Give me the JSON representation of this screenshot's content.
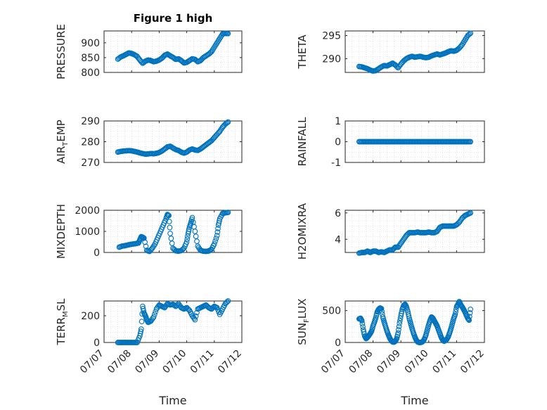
{
  "figure": {
    "title": "Figure 1 high"
  },
  "colors": {
    "marker": "#0072BD",
    "axis": "#262626",
    "grid": "#d0d0d0"
  },
  "x_tick_labels": [
    "07/07",
    "07/08",
    "07/09",
    "07/10",
    "07/11",
    "07/12"
  ],
  "chart_data": [
    {
      "type": "scatter",
      "ylabel": "PRESSURE",
      "ylabel_sub": "",
      "ylabel_suffix": "",
      "ylim": [
        800,
        940
      ],
      "yticks": [
        800,
        850,
        900
      ],
      "xlabel": "",
      "title": "Figure 1 high",
      "x": [
        7.5,
        7.6,
        7.7,
        7.8,
        7.9,
        8.0,
        8.1,
        8.2,
        8.3,
        8.4,
        8.5,
        8.6,
        8.7,
        8.8,
        8.9,
        9.0,
        9.1,
        9.2,
        9.3,
        9.4,
        9.5,
        9.6,
        9.7,
        9.8,
        9.9,
        10.0,
        10.1,
        10.2,
        10.3,
        10.4,
        10.5,
        10.6,
        10.7,
        10.8,
        10.9,
        11.0,
        11.1,
        11.2,
        11.3,
        11.4,
        11.5
      ],
      "y": [
        845,
        852,
        856,
        861,
        866,
        864,
        860,
        854,
        842,
        831,
        838,
        842,
        840,
        836,
        838,
        842,
        848,
        858,
        862,
        856,
        851,
        844,
        846,
        840,
        832,
        834,
        840,
        846,
        844,
        836,
        840,
        850,
        856,
        862,
        870,
        885,
        900,
        915,
        930,
        932,
        931
      ]
    },
    {
      "type": "scatter",
      "ylabel": "THETA",
      "ylabel_sub": "",
      "ylabel_suffix": "",
      "ylim": [
        287,
        296
      ],
      "yticks": [
        290,
        295
      ],
      "xlabel": "",
      "title": "",
      "x": [
        7.5,
        7.6,
        7.7,
        7.8,
        7.9,
        8.0,
        8.1,
        8.2,
        8.3,
        8.4,
        8.5,
        8.6,
        8.7,
        8.8,
        8.9,
        9.0,
        9.1,
        9.2,
        9.3,
        9.4,
        9.5,
        9.6,
        9.7,
        9.8,
        9.9,
        10.0,
        10.1,
        10.2,
        10.3,
        10.4,
        10.5,
        10.6,
        10.7,
        10.8,
        10.9,
        11.0,
        11.1,
        11.2,
        11.3,
        11.4,
        11.5
      ],
      "y": [
        288.3,
        288.2,
        288.0,
        287.8,
        287.5,
        287.3,
        287.4,
        287.8,
        288.2,
        288.5,
        288.4,
        288.7,
        289.0,
        288.6,
        288.0,
        288.8,
        289.5,
        290.0,
        290.3,
        290.5,
        290.3,
        290.4,
        290.5,
        290.3,
        290.2,
        290.3,
        290.6,
        290.8,
        291.0,
        290.8,
        291.0,
        291.2,
        291.5,
        291.7,
        291.6,
        291.8,
        292.3,
        293.0,
        294.0,
        295.0,
        295.5
      ]
    },
    {
      "type": "scatter",
      "ylabel": "AIR",
      "ylabel_sub": "T",
      "ylabel_suffix": "EMP",
      "ylim": [
        270,
        290
      ],
      "yticks": [
        270,
        280,
        290
      ],
      "xlabel": "",
      "title": "",
      "x": [
        7.5,
        7.6,
        7.7,
        7.8,
        7.9,
        8.0,
        8.1,
        8.2,
        8.3,
        8.4,
        8.5,
        8.6,
        8.7,
        8.8,
        8.9,
        9.0,
        9.1,
        9.2,
        9.3,
        9.4,
        9.5,
        9.6,
        9.7,
        9.8,
        9.9,
        10.0,
        10.1,
        10.2,
        10.3,
        10.4,
        10.5,
        10.6,
        10.7,
        10.8,
        10.9,
        11.0,
        11.1,
        11.2,
        11.3,
        11.4,
        11.5
      ],
      "y": [
        275.0,
        275.3,
        275.5,
        275.6,
        275.7,
        275.6,
        275.3,
        275.0,
        274.6,
        274.3,
        274.0,
        274.1,
        274.3,
        274.2,
        274.4,
        274.8,
        275.5,
        276.5,
        277.5,
        277.8,
        277.0,
        276.2,
        275.8,
        275.0,
        274.5,
        275.0,
        276.0,
        276.5,
        276.0,
        275.8,
        276.5,
        277.5,
        278.5,
        279.5,
        280.5,
        282.0,
        283.5,
        285.0,
        287.0,
        288.5,
        289.5
      ]
    },
    {
      "type": "scatter",
      "ylabel": "RAINFALL",
      "ylabel_sub": "",
      "ylabel_suffix": "",
      "ylim": [
        -1,
        1
      ],
      "yticks": [
        -1,
        0,
        1
      ],
      "xlabel": "",
      "title": "",
      "x": [
        7.5,
        7.6,
        7.7,
        7.8,
        7.9,
        8.0,
        8.1,
        8.2,
        8.3,
        8.4,
        8.5,
        8.6,
        8.7,
        8.8,
        8.9,
        9.0,
        9.1,
        9.2,
        9.3,
        9.4,
        9.5,
        9.6,
        9.7,
        9.8,
        9.9,
        10.0,
        10.1,
        10.2,
        10.3,
        10.4,
        10.5,
        10.6,
        10.7,
        10.8,
        10.9,
        11.0,
        11.1,
        11.2,
        11.3,
        11.4,
        11.5
      ],
      "y": [
        0,
        0,
        0,
        0,
        0,
        0,
        0,
        0,
        0,
        0,
        0,
        0,
        0,
        0,
        0,
        0,
        0,
        0,
        0,
        0,
        0,
        0,
        0,
        0,
        0,
        0,
        0,
        0,
        0,
        0,
        0,
        0,
        0,
        0,
        0,
        0,
        0,
        0,
        0,
        0,
        0
      ]
    },
    {
      "type": "scatter",
      "ylabel": "MIXDEPTH",
      "ylabel_sub": "",
      "ylabel_suffix": "",
      "ylim": [
        0,
        2000
      ],
      "yticks": [
        0,
        1000,
        2000
      ],
      "xlabel": "",
      "title": "",
      "x": [
        7.55,
        7.65,
        7.75,
        7.85,
        7.95,
        8.05,
        8.15,
        8.25,
        8.3,
        8.35,
        8.4,
        8.45,
        8.55,
        8.65,
        8.75,
        8.85,
        8.95,
        9.05,
        9.15,
        9.25,
        9.3,
        9.35,
        9.4,
        9.5,
        9.6,
        9.7,
        9.8,
        9.9,
        10.0,
        10.05,
        10.1,
        10.15,
        10.2,
        10.3,
        10.4,
        10.5,
        10.6,
        10.7,
        10.8,
        10.9,
        11.0,
        11.1,
        11.15,
        11.2,
        11.3,
        11.4,
        11.5
      ],
      "y": [
        250,
        300,
        320,
        350,
        380,
        400,
        420,
        450,
        600,
        750,
        720,
        680,
        100,
        50,
        200,
        400,
        700,
        1000,
        1300,
        1600,
        1800,
        1750,
        900,
        200,
        80,
        60,
        90,
        200,
        500,
        900,
        1200,
        1400,
        1650,
        1000,
        300,
        100,
        60,
        50,
        70,
        150,
        400,
        800,
        1300,
        1600,
        1850,
        1880,
        1900
      ]
    },
    {
      "type": "scatter",
      "ylabel": "H2OMIXRA",
      "ylabel_sub": "",
      "ylabel_suffix": "",
      "ylim": [
        3,
        6.2
      ],
      "yticks": [
        4,
        6
      ],
      "xlabel": "",
      "title": "",
      "x": [
        7.5,
        7.6,
        7.7,
        7.8,
        7.9,
        8.0,
        8.1,
        8.2,
        8.3,
        8.4,
        8.5,
        8.6,
        8.7,
        8.8,
        8.9,
        9.0,
        9.1,
        9.2,
        9.3,
        9.4,
        9.5,
        9.6,
        9.7,
        9.8,
        9.9,
        10.0,
        10.1,
        10.2,
        10.3,
        10.4,
        10.5,
        10.6,
        10.7,
        10.8,
        10.9,
        11.0,
        11.1,
        11.2,
        11.3,
        11.4,
        11.5
      ],
      "y": [
        2.95,
        3.0,
        3.0,
        3.1,
        3.0,
        3.1,
        3.1,
        3.0,
        3.05,
        3.0,
        3.1,
        3.2,
        3.2,
        3.4,
        3.4,
        3.7,
        4.0,
        4.3,
        4.5,
        4.5,
        4.5,
        4.55,
        4.5,
        4.5,
        4.5,
        4.55,
        4.5,
        4.5,
        4.6,
        4.9,
        5.0,
        5.0,
        5.0,
        5.0,
        5.0,
        5.1,
        5.3,
        5.6,
        5.8,
        5.9,
        6.0
      ]
    },
    {
      "type": "scatter",
      "ylabel": "TERR",
      "ylabel_sub": "M",
      "ylabel_suffix": "SL",
      "ylim": [
        0,
        310
      ],
      "yticks": [
        0,
        200
      ],
      "xlabel": "Time",
      "title": "",
      "x": [
        7.5,
        7.6,
        7.7,
        7.8,
        7.9,
        8.0,
        8.1,
        8.2,
        8.3,
        8.35,
        8.4,
        8.45,
        8.5,
        8.55,
        8.6,
        8.7,
        8.8,
        8.9,
        9.0,
        9.1,
        9.2,
        9.3,
        9.4,
        9.5,
        9.6,
        9.7,
        9.8,
        9.9,
        10.0,
        10.1,
        10.2,
        10.3,
        10.4,
        10.5,
        10.6,
        10.7,
        10.8,
        10.9,
        11.0,
        11.1,
        11.2,
        11.3,
        11.4,
        11.5
      ],
      "y": [
        0,
        0,
        0,
        0,
        0,
        0,
        0,
        0,
        50,
        100,
        270,
        220,
        200,
        170,
        150,
        160,
        190,
        250,
        280,
        270,
        260,
        290,
        280,
        285,
        270,
        290,
        260,
        250,
        260,
        240,
        200,
        170,
        250,
        260,
        270,
        280,
        260,
        250,
        270,
        260,
        210,
        250,
        290,
        310
      ]
    },
    {
      "type": "scatter",
      "ylabel": "SUN",
      "ylabel_sub": "F",
      "ylabel_suffix": "LUX",
      "ylim": [
        0,
        650
      ],
      "yticks": [
        0,
        500
      ],
      "xlabel": "Time",
      "title": "",
      "x": [
        7.5,
        7.55,
        7.6,
        7.65,
        7.7,
        7.75,
        7.8,
        7.85,
        7.9,
        7.95,
        8.0,
        8.05,
        8.1,
        8.15,
        8.2,
        8.25,
        8.3,
        8.35,
        8.4,
        8.45,
        8.5,
        8.55,
        8.6,
        8.65,
        8.7,
        8.75,
        8.8,
        8.85,
        8.9,
        8.95,
        9.0,
        9.05,
        9.1,
        9.15,
        9.2,
        9.25,
        9.3,
        9.35,
        9.4,
        9.45,
        9.5,
        9.55,
        9.6,
        9.65,
        9.7,
        9.75,
        9.8,
        9.85,
        9.9,
        9.95,
        10.0,
        10.05,
        10.1,
        10.15,
        10.2,
        10.25,
        10.3,
        10.35,
        10.4,
        10.45,
        10.5,
        10.55,
        10.6,
        10.65,
        10.7,
        10.75,
        10.8,
        10.85,
        10.9,
        10.95,
        11.0,
        11.05,
        11.1,
        11.15,
        11.2,
        11.25,
        11.3,
        11.35,
        11.4,
        11.45,
        11.5
      ],
      "y": [
        370,
        380,
        340,
        200,
        100,
        60,
        80,
        110,
        140,
        180,
        260,
        320,
        390,
        480,
        520,
        540,
        530,
        400,
        320,
        250,
        180,
        120,
        70,
        30,
        10,
        5,
        20,
        60,
        150,
        300,
        420,
        520,
        580,
        600,
        560,
        480,
        380,
        300,
        220,
        150,
        90,
        40,
        10,
        0,
        0,
        5,
        20,
        60,
        120,
        200,
        280,
        350,
        400,
        380,
        340,
        300,
        260,
        200,
        140,
        80,
        40,
        20,
        30,
        50,
        90,
        150,
        220,
        300,
        380,
        440,
        560,
        600,
        640,
        590,
        560,
        520,
        480,
        430,
        380,
        350,
        520
      ]
    }
  ]
}
